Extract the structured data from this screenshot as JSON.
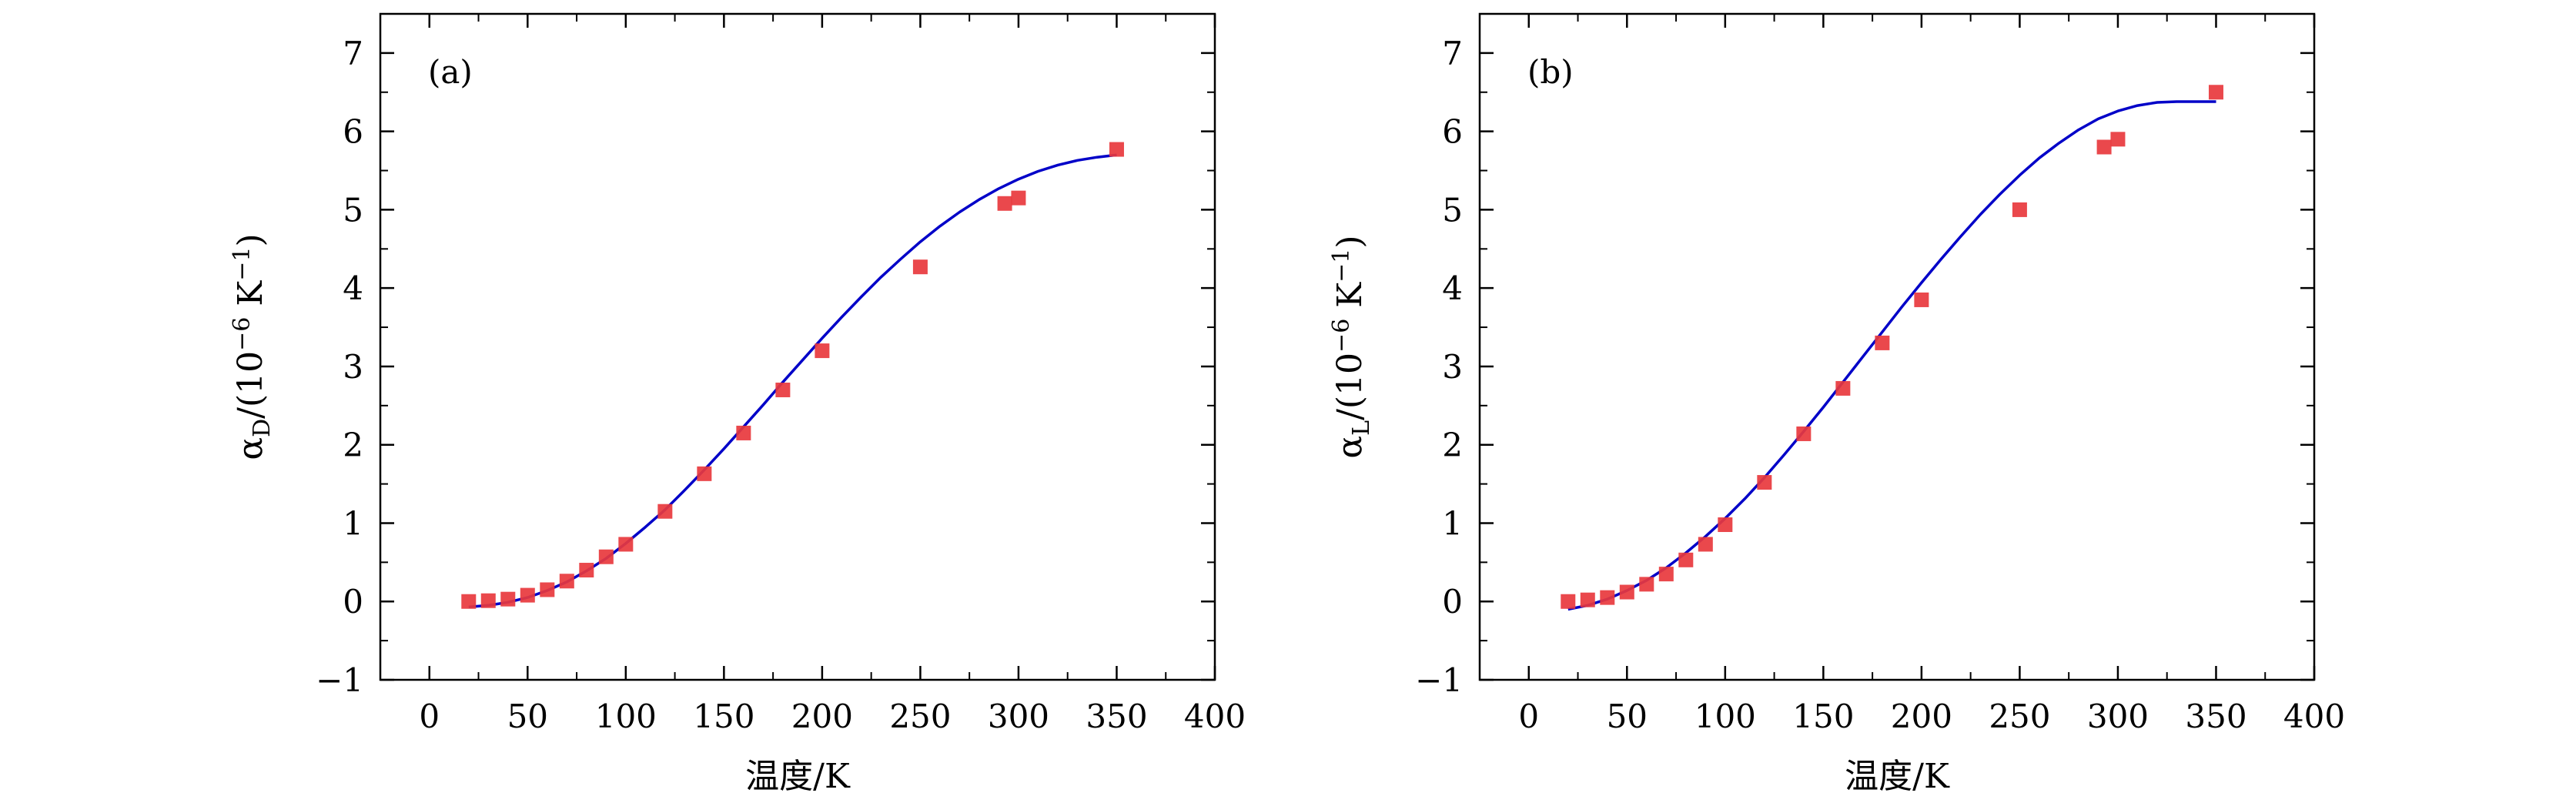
{
  "colors": {
    "marker": "#e8383d",
    "fit_line": "#0000c8",
    "axis": "#000000",
    "background": "#ffffff"
  },
  "chart_data": [
    {
      "type": "scatter",
      "panel_label": "(a)",
      "xlabel": "温度/K",
      "ylabel_main": "α",
      "ylabel_sub": "D",
      "ylabel_rest": "/(10",
      "ylabel_exp": "−6",
      "ylabel_unit": " K",
      "ylabel_unit_exp": "−1",
      "ylabel_close": ")",
      "xlim": [
        -25,
        400
      ],
      "ylim": [
        -1,
        7.5
      ],
      "x_ticks": [
        0,
        50,
        100,
        150,
        200,
        250,
        300,
        350,
        400
      ],
      "y_ticks": [
        -1,
        0,
        1,
        2,
        3,
        4,
        5,
        6,
        7
      ],
      "x_tick_labels": [
        "0",
        "50",
        "100",
        "150",
        "200",
        "250",
        "300",
        "350",
        "400"
      ],
      "y_tick_labels": [
        "−1",
        "0",
        "1",
        "2",
        "3",
        "4",
        "5",
        "6",
        "7"
      ],
      "grid": false,
      "series": [
        {
          "kind": "points",
          "x": [
            20,
            30,
            40,
            50,
            60,
            70,
            80,
            90,
            100,
            120,
            140,
            160,
            180,
            200,
            250,
            293,
            300,
            350
          ],
          "y": [
            0.0,
            0.01,
            0.03,
            0.08,
            0.15,
            0.26,
            0.4,
            0.57,
            0.73,
            1.15,
            1.63,
            2.15,
            2.7,
            3.2,
            4.27,
            5.08,
            5.15,
            5.77
          ]
        },
        {
          "kind": "fit",
          "x": [
            20,
            30,
            40,
            50,
            60,
            70,
            80,
            90,
            100,
            110,
            120,
            130,
            140,
            150,
            160,
            170,
            180,
            190,
            200,
            210,
            220,
            230,
            240,
            250,
            260,
            270,
            280,
            290,
            300,
            310,
            320,
            330,
            340,
            350
          ],
          "y": [
            -0.07,
            -0.05,
            -0.01,
            0.05,
            0.14,
            0.25,
            0.39,
            0.55,
            0.74,
            0.95,
            1.17,
            1.42,
            1.68,
            1.95,
            2.23,
            2.51,
            2.8,
            3.08,
            3.36,
            3.63,
            3.89,
            4.14,
            4.37,
            4.59,
            4.79,
            4.97,
            5.13,
            5.27,
            5.39,
            5.49,
            5.57,
            5.63,
            5.67,
            5.7
          ]
        }
      ]
    },
    {
      "type": "scatter",
      "panel_label": "(b)",
      "xlabel": "温度/K",
      "ylabel_main": "α",
      "ylabel_sub": "L",
      "ylabel_rest": "/(10",
      "ylabel_exp": "−6",
      "ylabel_unit": " K",
      "ylabel_unit_exp": "−1",
      "ylabel_close": ")",
      "xlim": [
        -25,
        400
      ],
      "ylim": [
        -1,
        7.5
      ],
      "x_ticks": [
        0,
        50,
        100,
        150,
        200,
        250,
        300,
        350,
        400
      ],
      "y_ticks": [
        -1,
        0,
        1,
        2,
        3,
        4,
        5,
        6,
        7
      ],
      "x_tick_labels": [
        "0",
        "50",
        "100",
        "150",
        "200",
        "250",
        "300",
        "350",
        "400"
      ],
      "y_tick_labels": [
        "−1",
        "0",
        "1",
        "2",
        "3",
        "4",
        "5",
        "6",
        "7"
      ],
      "grid": false,
      "series": [
        {
          "kind": "points",
          "x": [
            20,
            30,
            40,
            50,
            60,
            70,
            80,
            90,
            100,
            120,
            140,
            160,
            180,
            200,
            250,
            293,
            300,
            350
          ],
          "y": [
            0.0,
            0.02,
            0.05,
            0.12,
            0.22,
            0.35,
            0.53,
            0.73,
            0.98,
            1.52,
            2.14,
            2.72,
            3.3,
            3.85,
            5.0,
            5.8,
            5.9,
            6.5
          ]
        },
        {
          "kind": "fit",
          "x": [
            20,
            30,
            40,
            50,
            60,
            70,
            80,
            90,
            100,
            110,
            120,
            130,
            140,
            150,
            160,
            170,
            180,
            190,
            200,
            210,
            220,
            230,
            240,
            250,
            260,
            270,
            280,
            290,
            300,
            310,
            320,
            330,
            340,
            350
          ],
          "y": [
            -0.1,
            -0.05,
            0.03,
            0.14,
            0.27,
            0.43,
            0.62,
            0.83,
            1.06,
            1.31,
            1.58,
            1.87,
            2.17,
            2.48,
            2.8,
            3.12,
            3.44,
            3.76,
            4.07,
            4.37,
            4.66,
            4.94,
            5.2,
            5.44,
            5.66,
            5.85,
            6.02,
            6.16,
            6.26,
            6.33,
            6.37,
            6.38,
            6.38,
            6.38
          ]
        }
      ]
    }
  ]
}
